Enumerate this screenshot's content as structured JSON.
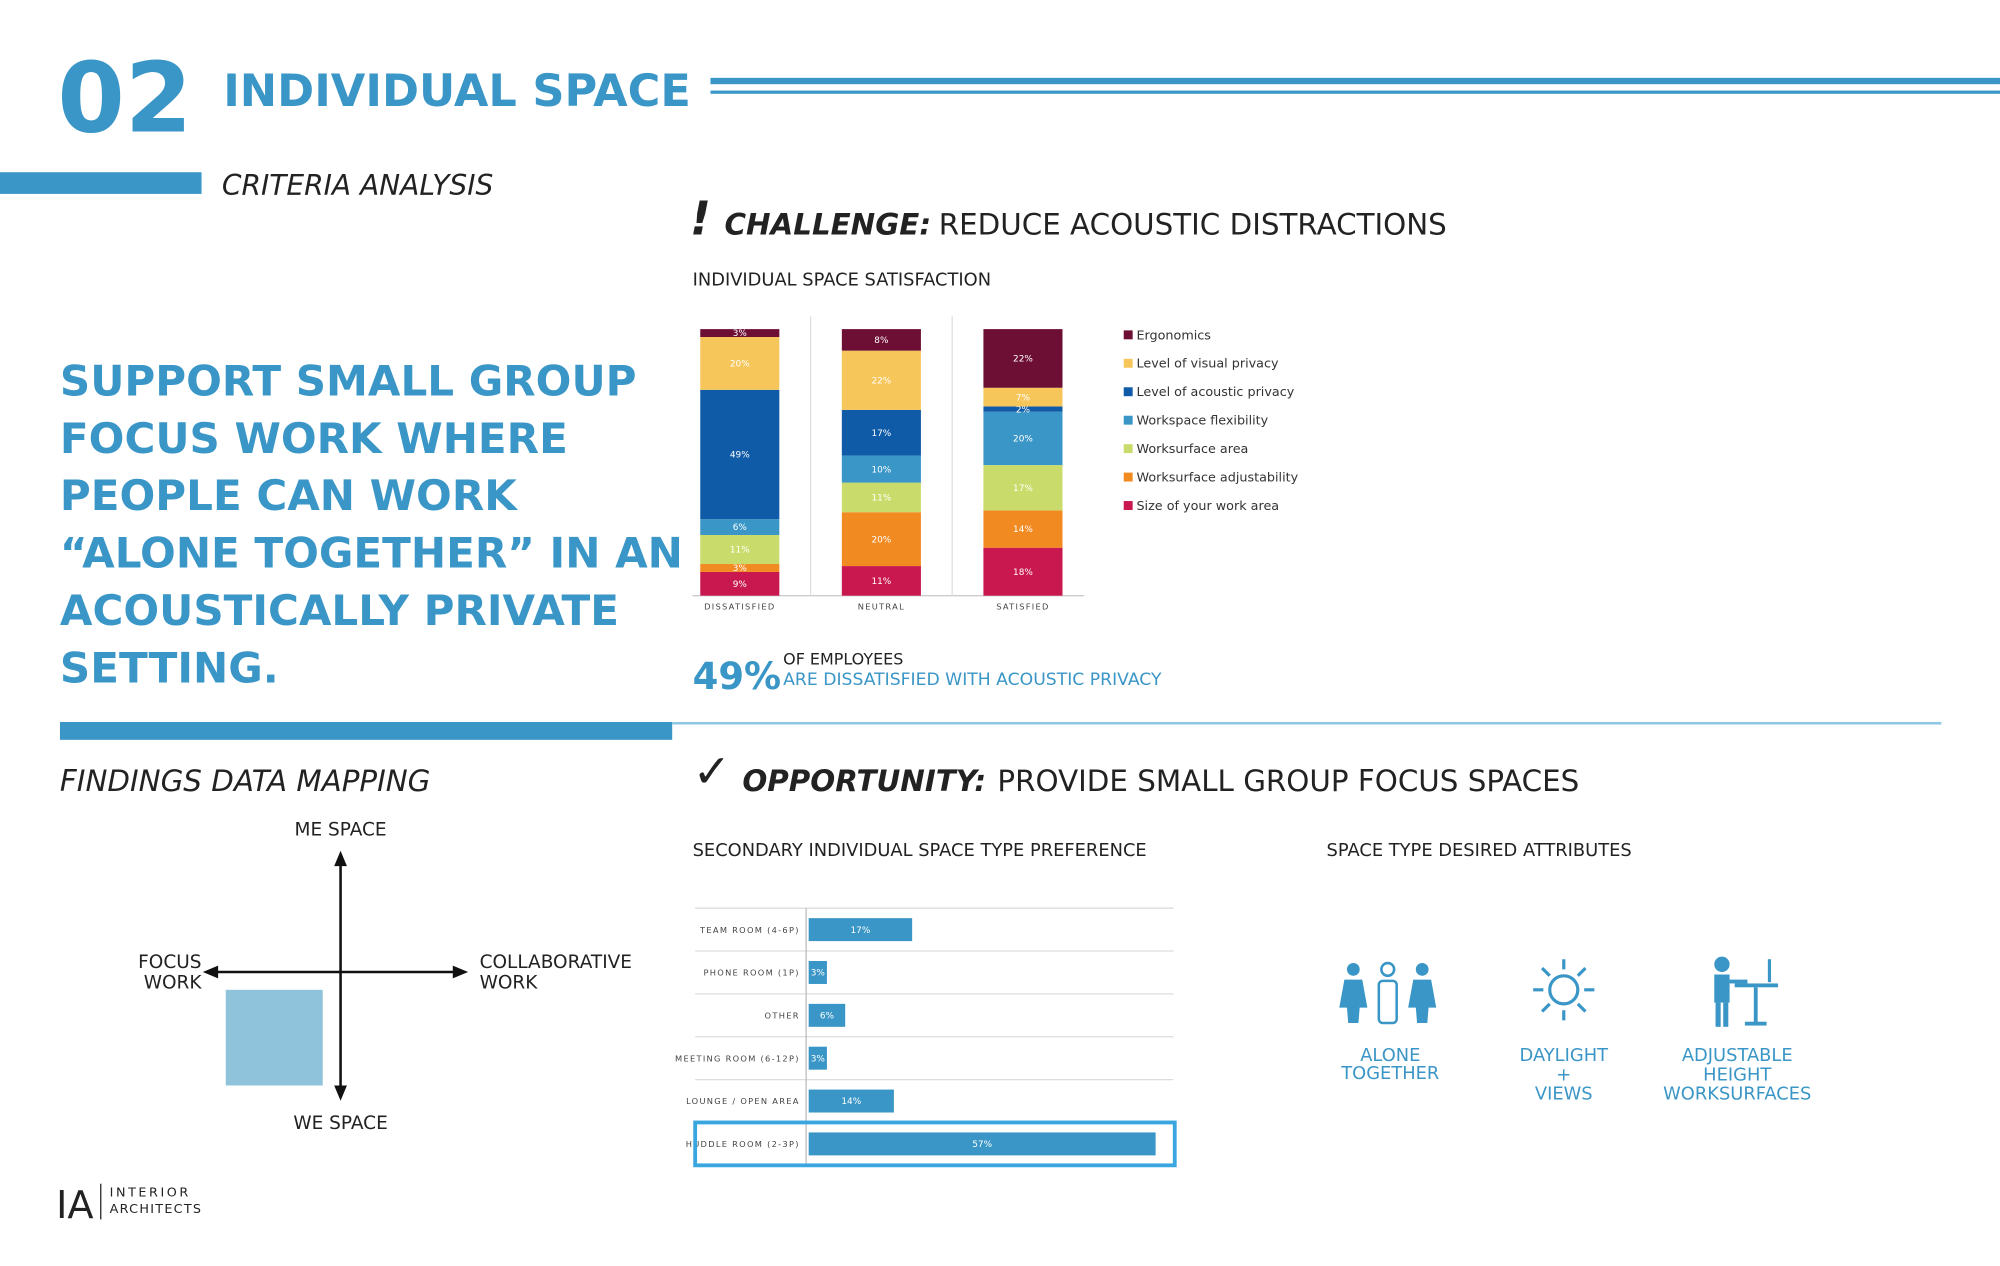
{
  "header": {
    "number": "02",
    "title": "INDIVIDUAL SPACE",
    "subtitle": "CRITERIA ANALYSIS"
  },
  "statement": [
    "SUPPORT SMALL GROUP",
    "FOCUS WORK WHERE",
    "PEOPLE CAN WORK",
    "“ALONE TOGETHER” IN AN",
    "ACOUSTICALLY PRIVATE",
    "SETTING."
  ],
  "challenge": {
    "mark": "!",
    "label": "CHALLENGE:",
    "text": "REDUCE ACOUSTIC DISTRACTIONS"
  },
  "stat": {
    "figure": "49%",
    "line1": "OF EMPLOYEES",
    "line2": "ARE DISSATISFIED WITH ACOUSTIC PRIVACY"
  },
  "findings": {
    "title": "FINDINGS DATA MAPPING",
    "top": "ME SPACE",
    "bottom": "WE SPACE",
    "left": [
      "FOCUS",
      "WORK"
    ],
    "right": [
      "COLLABORATIVE",
      "WORK"
    ]
  },
  "opportunity": {
    "mark": "✓",
    "label": "OPPORTUNITY:",
    "text": "PROVIDE SMALL GROUP FOCUS SPACES"
  },
  "attributes": {
    "title": "SPACE TYPE DESIRED ATTRIBUTES",
    "items": [
      [
        "ALONE",
        "TOGETHER"
      ],
      [
        "DAYLIGHT",
        "+",
        "VIEWS"
      ],
      [
        "ADJUSTABLE",
        "HEIGHT",
        "WORKSURFACES"
      ]
    ]
  },
  "logo": {
    "mark": "IA",
    "line1": "INTERIOR",
    "line2": "ARCHITECTS"
  },
  "chart_data": [
    {
      "type": "stacked_bar",
      "title": "INDIVIDUAL SPACE SATISFACTION",
      "legend": "right",
      "categories": [
        "DISSATISFIED",
        "NEUTRAL",
        "SATISFIED"
      ],
      "series": [
        {
          "name": "Ergonomics",
          "color": "#6d0e34",
          "values": [
            3,
            8,
            22
          ],
          "value_labels": [
            "3%",
            "8%",
            "22%"
          ]
        },
        {
          "name": "Level of visual privacy",
          "color": "#f7c65a",
          "values": [
            20,
            22,
            7
          ],
          "value_labels": [
            "20%",
            "22%",
            "7%"
          ]
        },
        {
          "name": "Level of acoustic privacy",
          "color": "#0f5ba8",
          "values": [
            49,
            17,
            2
          ],
          "value_labels": [
            "49%",
            "17%",
            "2%"
          ]
        },
        {
          "name": "Workspace flexibility",
          "color": "#3a96c6",
          "values": [
            6,
            10,
            20
          ],
          "value_labels": [
            "6%",
            "10%",
            "20%"
          ]
        },
        {
          "name": "Worksurface area",
          "color": "#c9dc6b",
          "values": [
            11,
            11,
            17
          ],
          "value_labels": [
            "11%",
            "11%",
            "17%"
          ]
        },
        {
          "name": "Worksurface adjustability",
          "color": "#f28a22",
          "values": [
            3,
            20,
            14
          ],
          "value_labels": [
            "3%",
            "20%",
            "14%"
          ]
        },
        {
          "name": "Size of your work area",
          "color": "#c8184f",
          "values": [
            9,
            11,
            18
          ],
          "value_labels": [
            "9%",
            "11%",
            "18%"
          ]
        }
      ]
    },
    {
      "type": "hbar",
      "title": "SECONDARY INDIVIDUAL SPACE TYPE PREFERENCE",
      "color": "#3a96c6",
      "grid": true,
      "categories": [
        "TEAM ROOM (4-6P)",
        "PHONE ROOM (1P)",
        "OTHER",
        "MEETING ROOM (6-12P)",
        "LOUNGE / OPEN AREA",
        "HUDDLE ROOM (2-3P)"
      ],
      "values": [
        17,
        3,
        6,
        3,
        14,
        57
      ],
      "value_labels": [
        "17%",
        "3%",
        "6%",
        "3%",
        "14%",
        "57%"
      ]
    }
  ]
}
